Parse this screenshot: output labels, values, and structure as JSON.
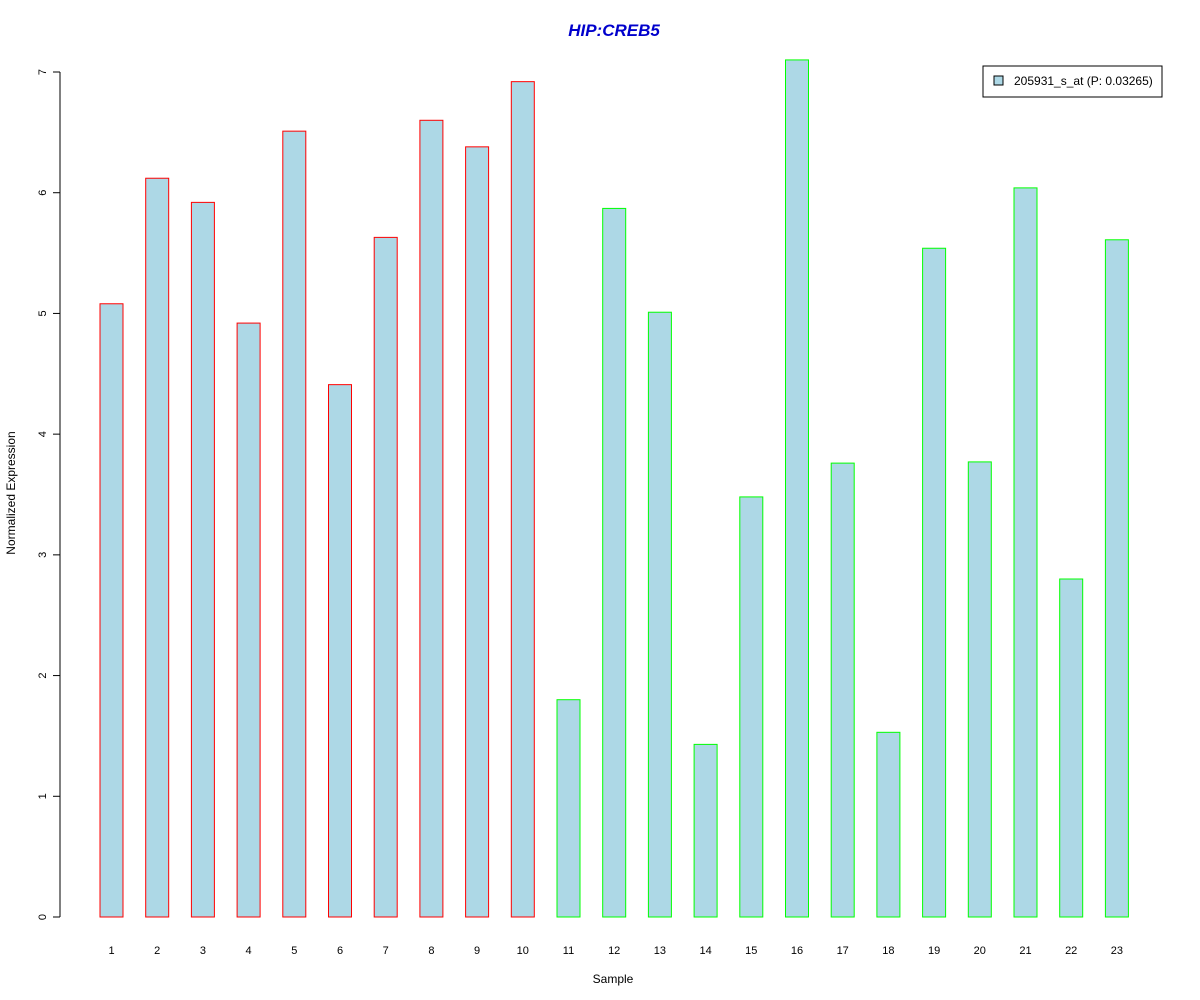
{
  "chart_data": {
    "type": "bar",
    "title": "HIP:CREB5",
    "xlabel": "Sample",
    "ylabel": "Normalized Expression",
    "categories": [
      "1",
      "2",
      "3",
      "4",
      "5",
      "6",
      "7",
      "8",
      "9",
      "10",
      "11",
      "12",
      "13",
      "14",
      "15",
      "16",
      "17",
      "18",
      "19",
      "20",
      "21",
      "22",
      "23"
    ],
    "y_ticks": [
      "0",
      "1",
      "2",
      "3",
      "4",
      "5",
      "6",
      "7"
    ],
    "ylim": [
      0,
      7
    ],
    "series": [
      {
        "name": "205931_s_at (P: 0.03265)",
        "values": [
          5.08,
          6.12,
          5.92,
          4.92,
          6.51,
          4.41,
          5.63,
          6.6,
          6.38,
          6.92,
          1.8,
          5.87,
          5.01,
          1.43,
          3.48,
          7.1,
          3.76,
          1.53,
          5.54,
          3.77,
          6.04,
          2.8,
          5.61
        ]
      }
    ],
    "group_colors": [
      "red",
      "red",
      "red",
      "red",
      "red",
      "red",
      "red",
      "red",
      "red",
      "red",
      "green",
      "green",
      "green",
      "green",
      "green",
      "green",
      "green",
      "green",
      "green",
      "green",
      "green",
      "green",
      "green"
    ],
    "colors": {
      "bar_fill": "#add8e6",
      "red": "#ff0000",
      "green": "#00ff00",
      "title": "#0000cc"
    },
    "legend_position": "top-right",
    "grid": false
  }
}
